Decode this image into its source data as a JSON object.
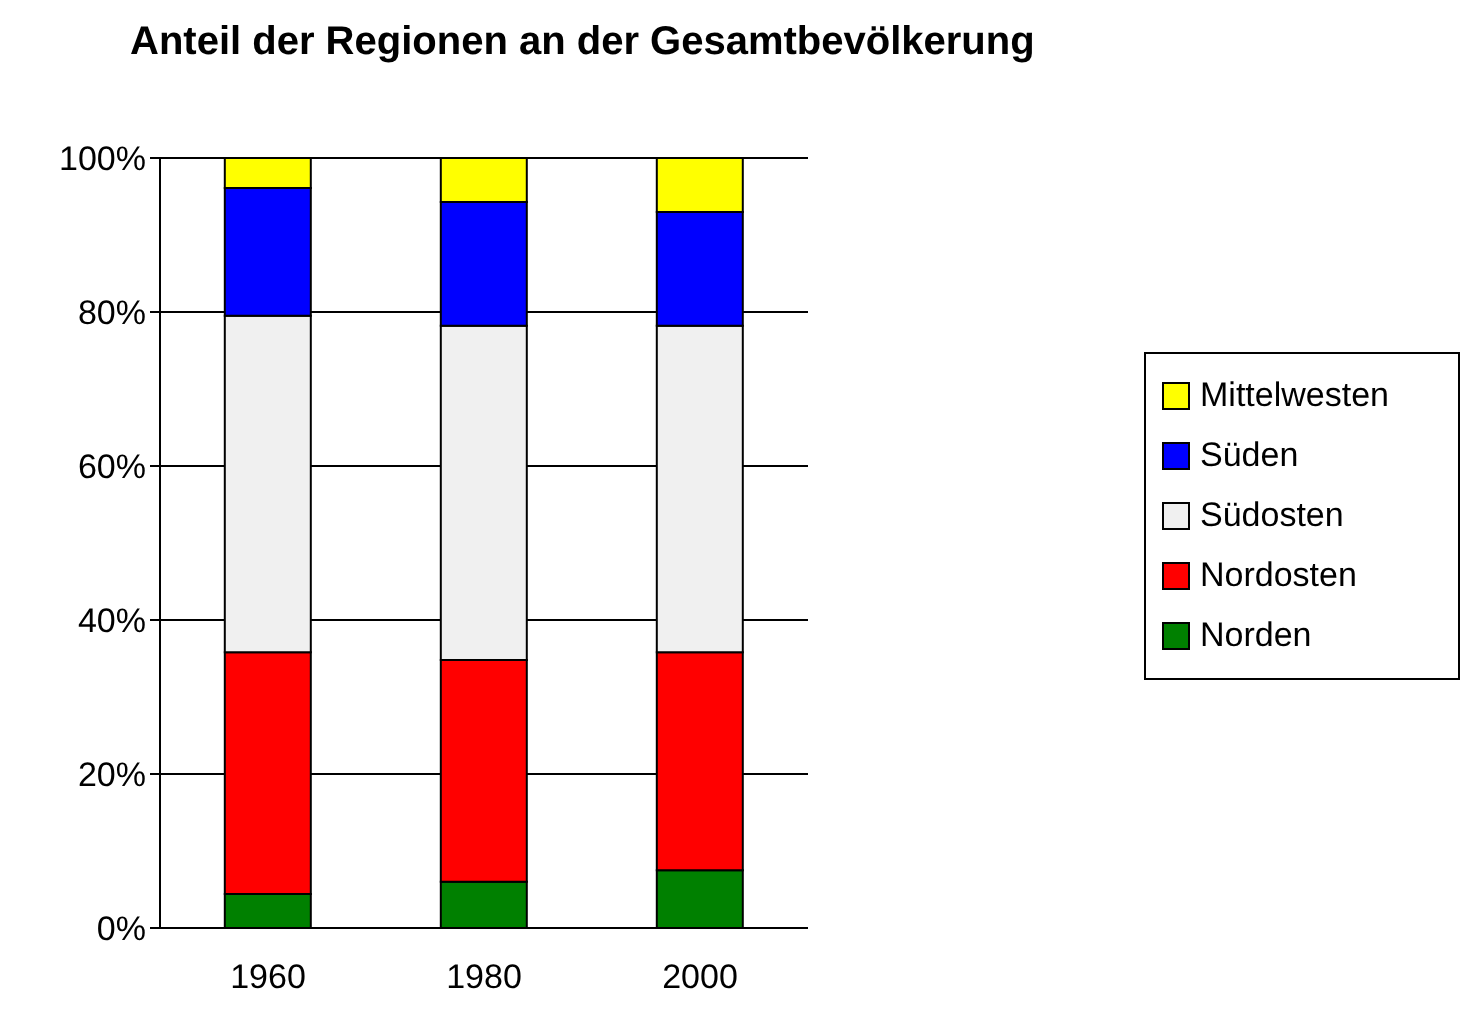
{
  "chart_data": {
    "type": "bar",
    "title": "Anteil der Regionen an der Gesamtbevölkerung",
    "categories": [
      "1960",
      "1980",
      "2000"
    ],
    "stacked": true,
    "series": [
      {
        "name": "Norden",
        "color": "#008000",
        "values": [
          4.4,
          6.0,
          7.5
        ]
      },
      {
        "name": "Nordosten",
        "color": "#ff0000",
        "values": [
          31.4,
          28.8,
          28.3
        ]
      },
      {
        "name": "Südosten",
        "color": "#f0f0f0",
        "values": [
          43.7,
          43.4,
          42.4
        ]
      },
      {
        "name": "Süden",
        "color": "#0000ff",
        "values": [
          16.6,
          16.1,
          14.8
        ]
      },
      {
        "name": "Mittelwesten",
        "color": "#ffff00",
        "values": [
          3.9,
          5.7,
          7.0
        ]
      }
    ],
    "ylim": [
      0,
      100
    ],
    "yticks": [
      {
        "value": 0,
        "label": "0%"
      },
      {
        "value": 20,
        "label": "20%"
      },
      {
        "value": 40,
        "label": "40%"
      },
      {
        "value": 60,
        "label": "60%"
      },
      {
        "value": 80,
        "label": "80%"
      },
      {
        "value": 100,
        "label": "100%"
      }
    ],
    "grid": "y",
    "legend": "right"
  }
}
